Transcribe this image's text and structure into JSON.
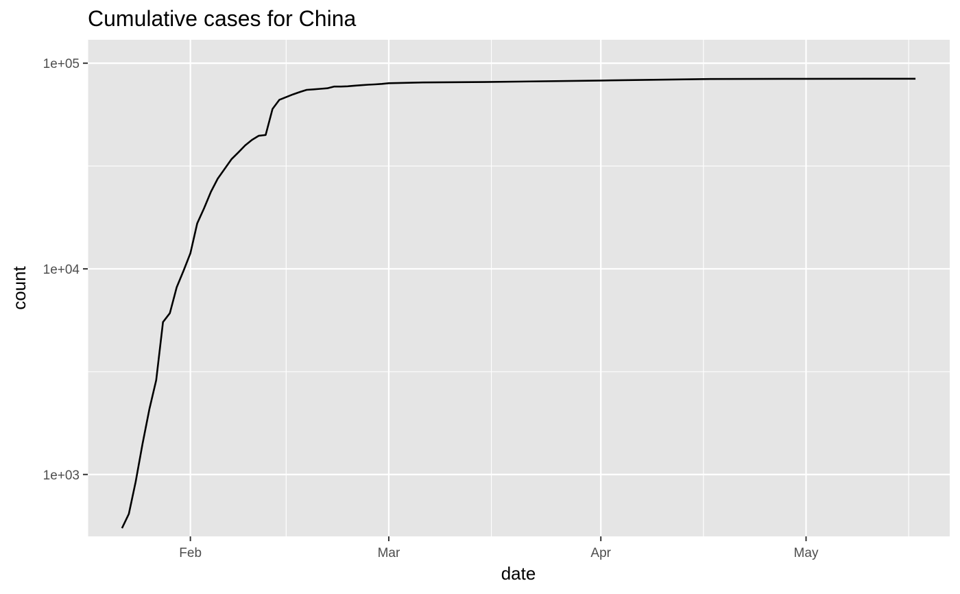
{
  "chart_data": {
    "type": "line",
    "title": "Cumulative cases for China",
    "xlabel": "date",
    "ylabel": "count",
    "y_scale": "log10",
    "ylim": [
      500,
      130000
    ],
    "xlim": [
      "2020-01-17",
      "2020-05-22"
    ],
    "grid": true,
    "background": "#e5e5e5",
    "line_color": "#000000",
    "x_ticks": [
      {
        "date": "2020-02-01",
        "label": "Feb"
      },
      {
        "date": "2020-03-01",
        "label": "Mar"
      },
      {
        "date": "2020-04-01",
        "label": "Apr"
      },
      {
        "date": "2020-05-01",
        "label": "May"
      }
    ],
    "x_minor_ticks": [
      "2020-01-17",
      "2020-02-15",
      "2020-03-16",
      "2020-04-16",
      "2020-05-16"
    ],
    "y_ticks": [
      {
        "value": 1000,
        "label": "1e+03"
      },
      {
        "value": 10000,
        "label": "1e+04"
      },
      {
        "value": 100000,
        "label": "1e+05"
      }
    ],
    "y_minor_ticks": [
      3162,
      31623
    ],
    "series": [
      {
        "x": [
          "2020-01-22",
          "2020-01-23",
          "2020-01-24",
          "2020-01-25",
          "2020-01-26",
          "2020-01-27",
          "2020-01-28",
          "2020-01-29",
          "2020-01-30",
          "2020-01-31",
          "2020-02-01",
          "2020-02-02",
          "2020-02-03",
          "2020-02-04",
          "2020-02-05",
          "2020-02-06",
          "2020-02-07",
          "2020-02-08",
          "2020-02-09",
          "2020-02-10",
          "2020-02-11",
          "2020-02-12",
          "2020-02-13",
          "2020-02-14",
          "2020-02-15",
          "2020-02-16",
          "2020-02-17",
          "2020-02-18",
          "2020-02-19",
          "2020-02-20",
          "2020-02-21",
          "2020-02-22",
          "2020-02-23",
          "2020-02-24",
          "2020-02-25",
          "2020-02-26",
          "2020-02-27",
          "2020-02-28",
          "2020-02-29",
          "2020-03-01",
          "2020-03-06",
          "2020-03-15",
          "2020-04-01",
          "2020-04-17",
          "2020-05-01",
          "2020-05-17"
        ],
        "y": [
          548,
          643,
          920,
          1406,
          2075,
          2877,
          5509,
          6087,
          8141,
          9802,
          11891,
          16630,
          19716,
          23707,
          27440,
          30587,
          34110,
          36814,
          39829,
          42354,
          44386,
          44759,
          59895,
          66358,
          68413,
          70513,
          72434,
          74211,
          74619,
          75077,
          75550,
          77001,
          77022,
          77241,
          77754,
          78166,
          78600,
          78928,
          79356,
          79932,
          80651,
          81003,
          82361,
          83760,
          83959,
          84054
        ]
      }
    ]
  }
}
